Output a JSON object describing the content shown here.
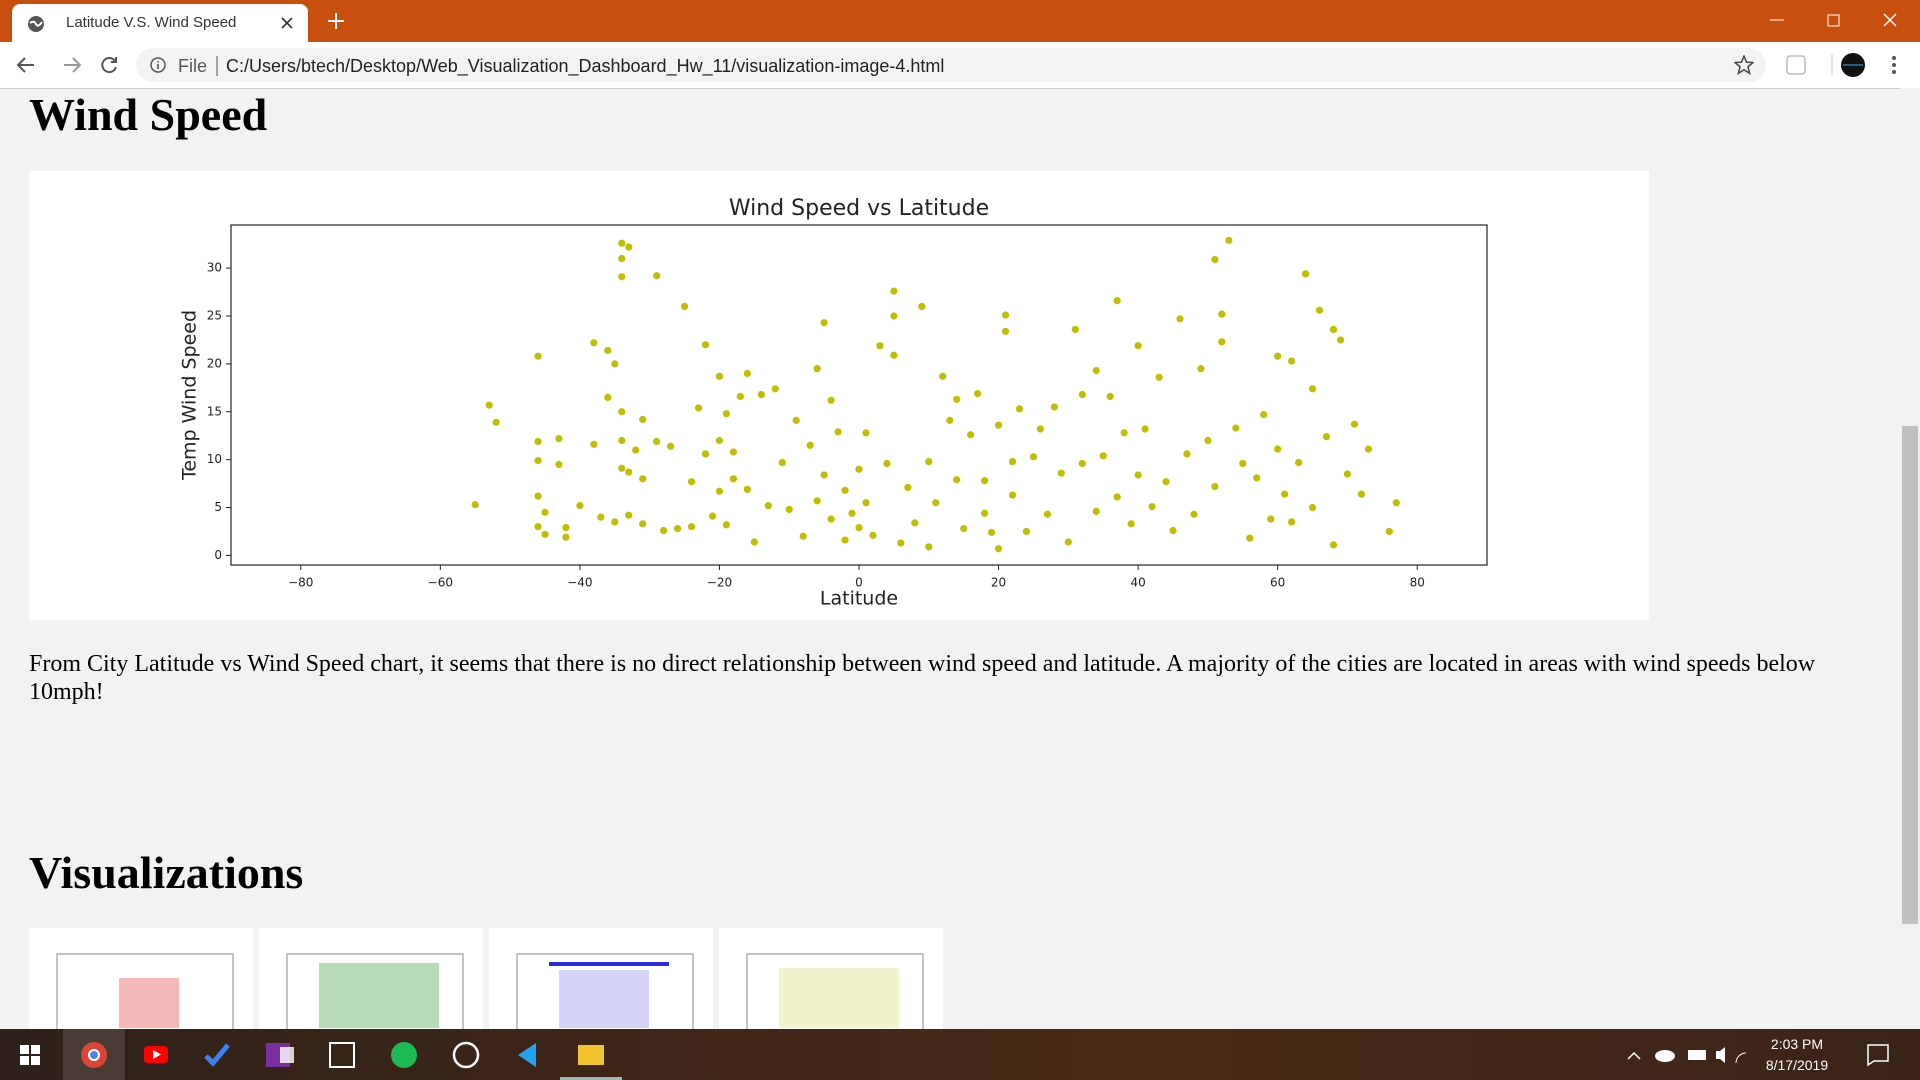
{
  "browser": {
    "tab_title": "Latitude V.S. Wind Speed",
    "scheme": "File",
    "url": "C:/Users/btech/Desktop/Web_Visualization_Dashboard_Hw_11/visualization-image-4.html"
  },
  "page": {
    "heading": "Wind Speed",
    "paragraph": "From City Latitude vs Wind Speed chart, it seems that there is no direct relationship between wind speed and latitude. A majority of the cities are located in areas with wind speeds below 10mph!",
    "section_heading": "Visualizations"
  },
  "chart_data": {
    "type": "scatter",
    "title": "Wind Speed vs Latitude",
    "x_label": "Latitude",
    "y_label": "Temp Wind Speed",
    "color": "#bfbf00",
    "xlim": [
      -90,
      90
    ],
    "ylim": [
      -1,
      34.5
    ],
    "xticks": [
      {
        "value": -80,
        "label": "−80"
      },
      {
        "value": -60,
        "label": "−60"
      },
      {
        "value": -40,
        "label": "−40"
      },
      {
        "value": -20,
        "label": "−20"
      },
      0,
      20,
      40,
      60,
      80
    ],
    "yticks": [
      0,
      5,
      10,
      15,
      20,
      25,
      30
    ],
    "x": [
      -55,
      -53,
      -52,
      -46,
      -46,
      -46,
      -46,
      -46,
      -45,
      -45,
      -43,
      -43,
      -42,
      -42,
      -40,
      -38,
      -38,
      -37,
      -36,
      -36,
      -35,
      -35,
      -34,
      -34,
      -34,
      -34,
      -33,
      -34,
      -34,
      -33,
      -33,
      -32,
      -31,
      -31,
      -31,
      -29,
      -29,
      -28,
      -27,
      -26,
      -25,
      -24,
      -24,
      -23,
      -22,
      -22,
      -21,
      -20,
      -20,
      -20,
      -19,
      -19,
      -18,
      -18,
      -17,
      -16,
      -16,
      -15,
      -14,
      -13,
      -12,
      -11,
      -10,
      -9,
      -8,
      -7,
      -6,
      -6,
      -5,
      -5,
      -4,
      -4,
      -3,
      -2,
      -2,
      -1,
      0,
      0,
      1,
      1,
      2,
      3,
      4,
      5,
      5,
      5,
      6,
      7,
      8,
      9,
      10,
      10,
      11,
      12,
      13,
      14,
      14,
      15,
      16,
      17,
      18,
      18,
      19,
      20,
      20,
      21,
      21,
      22,
      22,
      23,
      24,
      25,
      26,
      27,
      28,
      29,
      30,
      31,
      32,
      32,
      34,
      34,
      35,
      36,
      37,
      37,
      38,
      39,
      40,
      40,
      41,
      42,
      43,
      44,
      45,
      46,
      47,
      48,
      49,
      50,
      51,
      51,
      52,
      52,
      53,
      54,
      55,
      56,
      57,
      58,
      59,
      60,
      60,
      61,
      62,
      62,
      63,
      64,
      65,
      65,
      66,
      67,
      68,
      68,
      69,
      70,
      71,
      72,
      73,
      76,
      77
    ],
    "values": [
      5.3,
      15.7,
      13.9,
      20.8,
      11.9,
      9.9,
      6.2,
      3,
      2.2,
      4.5,
      12.2,
      9.5,
      2.9,
      1.9,
      5.2,
      22.2,
      11.6,
      4,
      21.4,
      16.5,
      3.5,
      20,
      32.6,
      31,
      29.1,
      15,
      32.2,
      12,
      9.1,
      8.7,
      4.2,
      11,
      14.2,
      8,
      3.3,
      29.2,
      11.9,
      2.6,
      11.4,
      2.8,
      26,
      3,
      7.7,
      15.4,
      22,
      10.6,
      4.1,
      18.7,
      12,
      6.7,
      14.8,
      3.2,
      10.8,
      8,
      16.6,
      19,
      6.9,
      1.4,
      16.8,
      5.2,
      17.4,
      9.7,
      4.8,
      14.1,
      2,
      11.5,
      19.5,
      5.7,
      24.3,
      8.4,
      16.2,
      3.8,
      12.9,
      6.8,
      1.6,
      4.4,
      9,
      2.9,
      12.8,
      5.5,
      2.1,
      21.9,
      9.6,
      27.6,
      25,
      20.9,
      1.3,
      7.1,
      3.4,
      26,
      9.8,
      0.9,
      5.5,
      18.7,
      14.1,
      16.3,
      7.9,
      2.8,
      12.6,
      16.9,
      7.8,
      4.4,
      2.4,
      13.6,
      0.7,
      25.1,
      23.4,
      9.8,
      6.3,
      15.3,
      2.5,
      10.3,
      13.2,
      4.3,
      15.5,
      8.6,
      1.4,
      23.6,
      9.6,
      16.8,
      19.3,
      4.6,
      10.4,
      16.6,
      26.6,
      6.1,
      12.8,
      3.3,
      21.9,
      8.4,
      13.2,
      5.1,
      18.6,
      7.7,
      2.6,
      24.7,
      10.6,
      4.3,
      19.5,
      12,
      30.9,
      7.2,
      22.3,
      25.2,
      32.9,
      13.3,
      9.6,
      1.8,
      8.1,
      14.7,
      3.8,
      20.8,
      11.1,
      6.4,
      20.3,
      3.5,
      9.7,
      29.4,
      17.4,
      5,
      25.6,
      12.4,
      1.1,
      23.6,
      22.5,
      8.5,
      13.7,
      6.4,
      11.1,
      2.5,
      5.5
    ]
  },
  "taskbar": {
    "time": "2:03 PM",
    "date": "8/17/2019"
  }
}
